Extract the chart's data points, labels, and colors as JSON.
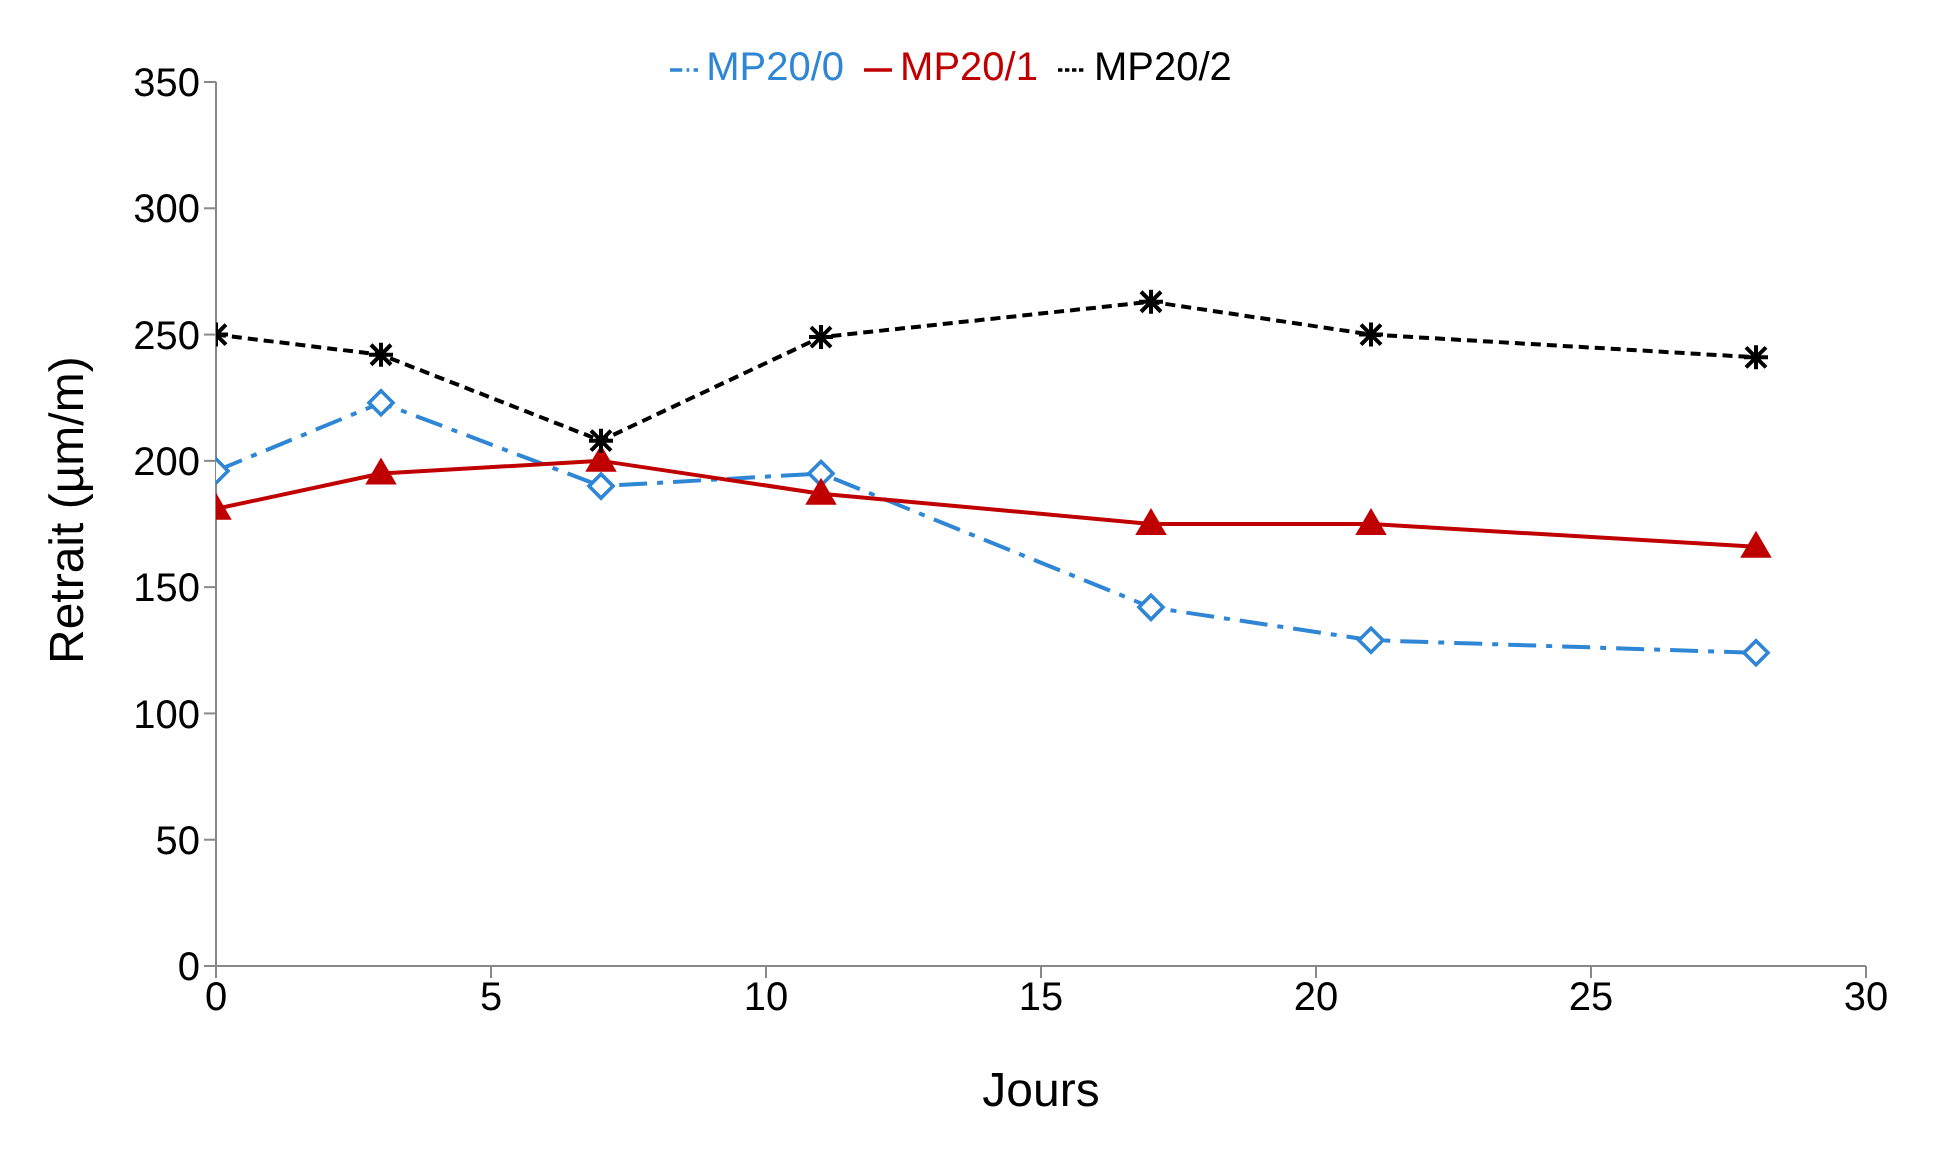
{
  "chart_data": {
    "type": "line",
    "xlabel": "Jours",
    "ylabel": "Retrait (µm/m)",
    "x": [
      0,
      3,
      7,
      11,
      17,
      21,
      28
    ],
    "series": [
      {
        "name": "MP20/0",
        "color": "#2e86d4",
        "values": [
          196,
          223,
          190,
          195,
          142,
          129,
          124
        ],
        "marker": "diamond",
        "line_style": "dashed"
      },
      {
        "name": "MP20/1",
        "color": "#c00000",
        "values": [
          181,
          195,
          200,
          187,
          175,
          175,
          166
        ],
        "marker": "triangle",
        "line_style": "solid"
      },
      {
        "name": "MP20/2",
        "color": "#000000",
        "values": [
          250,
          242,
          208,
          249,
          263,
          250,
          241
        ],
        "marker": "cross",
        "line_style": "dotted"
      }
    ],
    "xlim": [
      0,
      30
    ],
    "xticks": [
      0,
      5,
      10,
      15,
      20,
      25,
      30
    ],
    "ylim": [
      0,
      350
    ],
    "yticks": [
      0,
      50,
      100,
      150,
      200,
      250,
      300,
      350
    ],
    "legend": "top"
  }
}
